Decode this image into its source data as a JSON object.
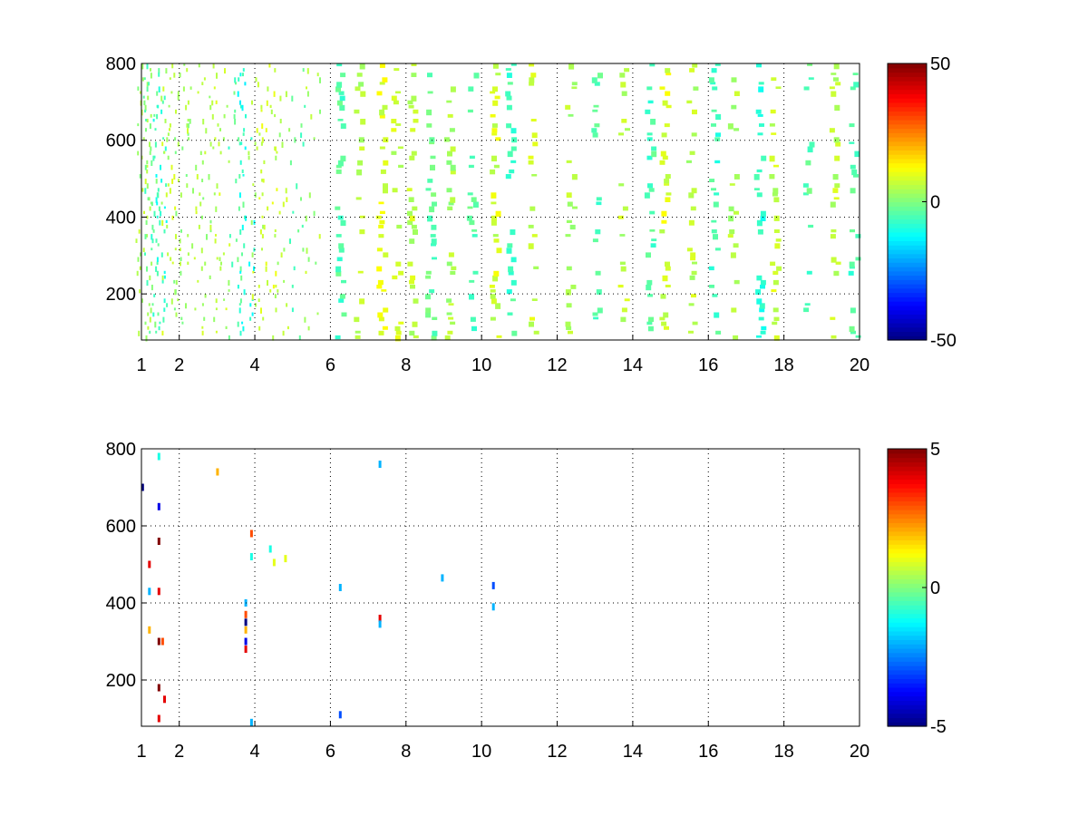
{
  "chart_data": [
    {
      "type": "heatmap",
      "title": "",
      "xlabel": "",
      "ylabel": "",
      "xlim": [
        1,
        20
      ],
      "ylim": [
        80,
        800
      ],
      "x_ticks": [
        1,
        2,
        4,
        6,
        8,
        10,
        12,
        14,
        16,
        18,
        20
      ],
      "y_ticks": [
        200,
        400,
        600,
        800
      ],
      "grid": true,
      "colormap": "jet",
      "clim": [
        -50,
        50
      ],
      "colorbar_ticks": [
        -50,
        0,
        50
      ],
      "colorbar_location": "right",
      "description_of_values": "sparse field of small magnitudes; dense at low x, column-like streaks at higher x",
      "columns": [
        {
          "x": 1.05,
          "density": 0.8,
          "value": 4
        },
        {
          "x": 1.25,
          "density": 0.75,
          "value": -3
        },
        {
          "x": 1.45,
          "density": 0.7,
          "value": -8
        },
        {
          "x": 1.7,
          "density": 0.6,
          "value": 6
        },
        {
          "x": 2.05,
          "density": 0.6,
          "value": 3
        },
        {
          "x": 2.4,
          "density": 0.5,
          "value": 5
        },
        {
          "x": 2.8,
          "density": 0.5,
          "value": 4
        },
        {
          "x": 3.1,
          "density": 0.45,
          "value": 6
        },
        {
          "x": 3.5,
          "density": 0.45,
          "value": -4
        },
        {
          "x": 3.75,
          "density": 0.55,
          "value": -10
        },
        {
          "x": 4.0,
          "density": 0.5,
          "value": 6
        },
        {
          "x": 4.35,
          "density": 0.5,
          "value": 8
        },
        {
          "x": 4.7,
          "density": 0.4,
          "value": 5
        },
        {
          "x": 5.1,
          "density": 0.35,
          "value": -3
        },
        {
          "x": 5.5,
          "density": 0.3,
          "value": 4
        },
        {
          "x": 6.2,
          "density": 0.45,
          "value": -5
        },
        {
          "x": 6.7,
          "density": 0.3,
          "value": 5
        },
        {
          "x": 7.3,
          "density": 0.55,
          "value": 9
        },
        {
          "x": 7.7,
          "density": 0.3,
          "value": 7
        },
        {
          "x": 8.1,
          "density": 0.4,
          "value": 6
        },
        {
          "x": 8.6,
          "density": 0.3,
          "value": -3
        },
        {
          "x": 9.1,
          "density": 0.3,
          "value": 4
        },
        {
          "x": 9.7,
          "density": 0.3,
          "value": -4
        },
        {
          "x": 10.3,
          "density": 0.55,
          "value": 8
        },
        {
          "x": 10.7,
          "density": 0.45,
          "value": -6
        },
        {
          "x": 11.3,
          "density": 0.35,
          "value": 7
        },
        {
          "x": 12.3,
          "density": 0.3,
          "value": 5
        },
        {
          "x": 13.0,
          "density": 0.3,
          "value": -4
        },
        {
          "x": 13.7,
          "density": 0.25,
          "value": 6
        },
        {
          "x": 14.4,
          "density": 0.35,
          "value": -5
        },
        {
          "x": 14.8,
          "density": 0.4,
          "value": 9
        },
        {
          "x": 15.5,
          "density": 0.35,
          "value": 6
        },
        {
          "x": 16.1,
          "density": 0.4,
          "value": -6
        },
        {
          "x": 16.6,
          "density": 0.25,
          "value": 4
        },
        {
          "x": 17.3,
          "density": 0.45,
          "value": -8
        },
        {
          "x": 17.7,
          "density": 0.35,
          "value": 7
        },
        {
          "x": 18.6,
          "density": 0.25,
          "value": -4
        },
        {
          "x": 19.3,
          "density": 0.35,
          "value": 6
        },
        {
          "x": 19.8,
          "density": 0.3,
          "value": -5
        }
      ]
    },
    {
      "type": "heatmap",
      "title": "",
      "xlabel": "",
      "ylabel": "",
      "xlim": [
        1,
        20
      ],
      "ylim": [
        80,
        800
      ],
      "x_ticks": [
        1,
        2,
        4,
        6,
        8,
        10,
        12,
        14,
        16,
        18,
        20
      ],
      "y_ticks": [
        200,
        400,
        600,
        800
      ],
      "grid": true,
      "colormap": "jet",
      "clim": [
        -5,
        5
      ],
      "colorbar_ticks": [
        -5,
        0,
        5
      ],
      "colorbar_location": "right",
      "points": [
        {
          "x": 1.02,
          "y": 700,
          "value": -5
        },
        {
          "x": 1.2,
          "y": 500,
          "value": 4
        },
        {
          "x": 1.2,
          "y": 430,
          "value": -2
        },
        {
          "x": 1.2,
          "y": 330,
          "value": 2
        },
        {
          "x": 1.45,
          "y": 780,
          "value": -1
        },
        {
          "x": 1.45,
          "y": 650,
          "value": -4
        },
        {
          "x": 1.45,
          "y": 560,
          "value": 5
        },
        {
          "x": 1.45,
          "y": 430,
          "value": 4
        },
        {
          "x": 1.45,
          "y": 300,
          "value": 5
        },
        {
          "x": 1.45,
          "y": 180,
          "value": 5
        },
        {
          "x": 1.45,
          "y": 100,
          "value": 4
        },
        {
          "x": 1.55,
          "y": 300,
          "value": 3
        },
        {
          "x": 1.6,
          "y": 150,
          "value": 4
        },
        {
          "x": 3.0,
          "y": 740,
          "value": 2
        },
        {
          "x": 3.75,
          "y": 400,
          "value": -2
        },
        {
          "x": 3.75,
          "y": 370,
          "value": 3
        },
        {
          "x": 3.75,
          "y": 350,
          "value": -5
        },
        {
          "x": 3.75,
          "y": 330,
          "value": 2
        },
        {
          "x": 3.75,
          "y": 300,
          "value": -4
        },
        {
          "x": 3.75,
          "y": 280,
          "value": 4
        },
        {
          "x": 3.9,
          "y": 580,
          "value": 3
        },
        {
          "x": 3.9,
          "y": 520,
          "value": -1
        },
        {
          "x": 3.9,
          "y": 90,
          "value": -2
        },
        {
          "x": 4.4,
          "y": 540,
          "value": -1
        },
        {
          "x": 4.5,
          "y": 505,
          "value": 1
        },
        {
          "x": 4.8,
          "y": 515,
          "value": 1
        },
        {
          "x": 6.25,
          "y": 110,
          "value": -3
        },
        {
          "x": 6.25,
          "y": 440,
          "value": -2
        },
        {
          "x": 7.3,
          "y": 760,
          "value": -2
        },
        {
          "x": 7.3,
          "y": 360,
          "value": 4
        },
        {
          "x": 7.3,
          "y": 345,
          "value": -2
        },
        {
          "x": 8.95,
          "y": 465,
          "value": -2
        },
        {
          "x": 10.3,
          "y": 445,
          "value": -3
        },
        {
          "x": 10.3,
          "y": 390,
          "value": -2
        }
      ]
    }
  ]
}
